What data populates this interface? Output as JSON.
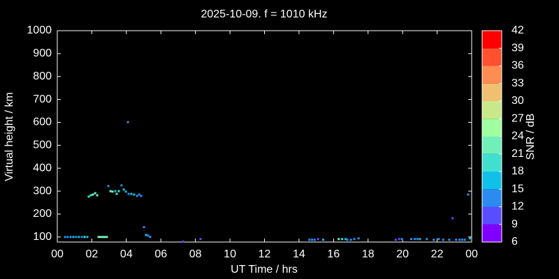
{
  "chart_data": {
    "type": "scatter",
    "title": "2025-10-09. f = 1010 kHz",
    "x_label": "UT Time / hrs",
    "y_label": "Virtual height / km",
    "xlim": [
      0,
      24
    ],
    "ylim": [
      78,
      1000
    ],
    "xticks": [
      {
        "value": 0,
        "label": "00"
      },
      {
        "value": 2,
        "label": "02"
      },
      {
        "value": 4,
        "label": "04"
      },
      {
        "value": 6,
        "label": "06"
      },
      {
        "value": 8,
        "label": "08"
      },
      10,
      12,
      14,
      16,
      18,
      20,
      22,
      {
        "value": 24,
        "label": "00"
      }
    ],
    "yticks": [
      100,
      200,
      300,
      400,
      500,
      600,
      700,
      800,
      900,
      1000
    ],
    "grid": false,
    "colorbar": {
      "label": "SNR / dB",
      "range": [
        6,
        42
      ],
      "ticks": [
        6,
        9,
        12,
        15,
        18,
        21,
        24,
        27,
        30,
        33,
        36,
        39,
        42
      ],
      "colors": [
        "#8000ff",
        "#5a4cff",
        "#2a8cf0",
        "#10c0e8",
        "#40e0d0",
        "#70f0b8",
        "#a0ffa0",
        "#c8e88a",
        "#f0c070",
        "#ff8c50",
        "#ff5030",
        "#ff0000"
      ]
    },
    "series": [
      {
        "name": "SNR",
        "x": [
          0.45,
          0.6,
          0.77,
          0.93,
          1.09,
          1.25,
          1.42,
          1.58,
          1.74,
          1.82,
          1.94,
          2.06,
          2.19,
          2.31,
          2.39,
          2.51,
          2.63,
          2.75,
          2.87,
          2.96,
          3.08,
          3.2,
          3.36,
          3.44,
          3.56,
          3.72,
          3.85,
          3.97,
          4.09,
          4.13,
          4.29,
          4.45,
          4.62,
          4.74,
          4.86,
          5.02,
          5.14,
          5.26,
          5.38,
          7.29,
          8.3,
          14.6,
          14.75,
          14.9,
          15.1,
          15.4,
          16.3,
          16.5,
          16.7,
          16.8,
          17.0,
          17.2,
          17.45,
          19.6,
          19.8,
          19.96,
          20.5,
          20.7,
          20.85,
          21.0,
          21.4,
          21.8,
          22.1,
          22.35,
          22.7,
          22.9,
          23.1,
          23.3,
          23.45,
          23.6,
          23.8,
          23.9
        ],
        "y": [
          100,
          100,
          100,
          100,
          100,
          100,
          100,
          100,
          100,
          276,
          282,
          285,
          291,
          282,
          100,
          100,
          100,
          100,
          100,
          322,
          300,
          298,
          300,
          288,
          300,
          325,
          307,
          298,
          601,
          288,
          288,
          285,
          279,
          285,
          279,
          143,
          109,
          106,
          100,
          80,
          91,
          88,
          88,
          88,
          91,
          88,
          91,
          91,
          91,
          88,
          88,
          91,
          94,
          88,
          91,
          91,
          91,
          91,
          91,
          91,
          91,
          88,
          91,
          88,
          88,
          182,
          88,
          88,
          88,
          88,
          285,
          94
        ],
        "snr": [
          13,
          13,
          13,
          16,
          13,
          16,
          13,
          19,
          16,
          19,
          19,
          22,
          22,
          22,
          22,
          22,
          22,
          22,
          22,
          13,
          22,
          22,
          16,
          19,
          19,
          13,
          16,
          16,
          13,
          13,
          16,
          16,
          13,
          13,
          13,
          13,
          16,
          13,
          13,
          10,
          10,
          13,
          13,
          13,
          10,
          16,
          22,
          19,
          16,
          13,
          13,
          13,
          13,
          10,
          10,
          13,
          13,
          13,
          13,
          16,
          13,
          13,
          13,
          13,
          13,
          10,
          13,
          13,
          13,
          13,
          13,
          16
        ]
      }
    ]
  }
}
